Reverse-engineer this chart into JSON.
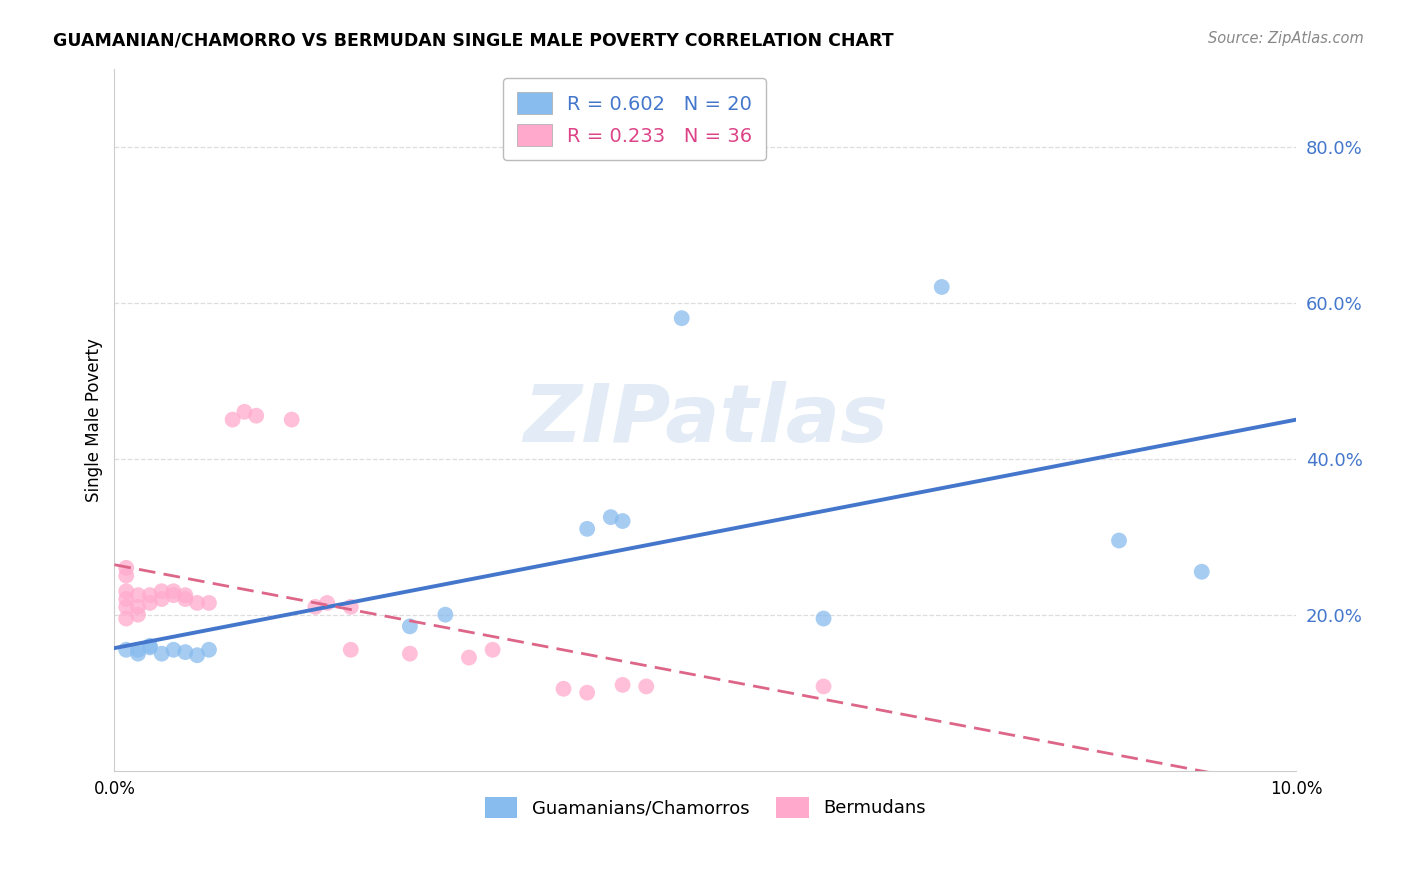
{
  "title": "GUAMANIAN/CHAMORRO VS BERMUDAN SINGLE MALE POVERTY CORRELATION CHART",
  "source": "Source: ZipAtlas.com",
  "ylabel": "Single Male Poverty",
  "watermark": "ZIPatlas",
  "yticks": [
    "20.0%",
    "40.0%",
    "60.0%",
    "80.0%"
  ],
  "ytick_vals": [
    0.2,
    0.4,
    0.6,
    0.8
  ],
  "xlim": [
    0.0,
    0.1
  ],
  "ylim": [
    0.0,
    0.9
  ],
  "blue_color": "#88BBEE",
  "pink_color": "#FFAACC",
  "blue_line_color": "#4477CC",
  "pink_line_color": "#DD6688",
  "blue_scatter": [
    [
      0.001,
      0.155
    ],
    [
      0.002,
      0.15
    ],
    [
      0.002,
      0.155
    ],
    [
      0.003,
      0.158
    ],
    [
      0.003,
      0.16
    ],
    [
      0.004,
      0.15
    ],
    [
      0.005,
      0.155
    ],
    [
      0.006,
      0.152
    ],
    [
      0.007,
      0.148
    ],
    [
      0.008,
      0.155
    ],
    [
      0.025,
      0.185
    ],
    [
      0.028,
      0.2
    ],
    [
      0.04,
      0.31
    ],
    [
      0.042,
      0.325
    ],
    [
      0.043,
      0.32
    ],
    [
      0.048,
      0.58
    ],
    [
      0.06,
      0.195
    ],
    [
      0.07,
      0.62
    ],
    [
      0.085,
      0.295
    ],
    [
      0.092,
      0.255
    ]
  ],
  "pink_scatter": [
    [
      0.001,
      0.195
    ],
    [
      0.001,
      0.21
    ],
    [
      0.001,
      0.22
    ],
    [
      0.001,
      0.23
    ],
    [
      0.001,
      0.25
    ],
    [
      0.001,
      0.26
    ],
    [
      0.002,
      0.2
    ],
    [
      0.002,
      0.21
    ],
    [
      0.002,
      0.225
    ],
    [
      0.003,
      0.215
    ],
    [
      0.003,
      0.225
    ],
    [
      0.004,
      0.22
    ],
    [
      0.004,
      0.23
    ],
    [
      0.005,
      0.225
    ],
    [
      0.005,
      0.23
    ],
    [
      0.006,
      0.22
    ],
    [
      0.006,
      0.225
    ],
    [
      0.007,
      0.215
    ],
    [
      0.008,
      0.215
    ],
    [
      0.01,
      0.45
    ],
    [
      0.011,
      0.46
    ],
    [
      0.012,
      0.455
    ],
    [
      0.015,
      0.45
    ],
    [
      0.017,
      0.21
    ],
    [
      0.018,
      0.215
    ],
    [
      0.02,
      0.21
    ],
    [
      0.02,
      0.155
    ],
    [
      0.025,
      0.15
    ],
    [
      0.03,
      0.145
    ],
    [
      0.032,
      0.155
    ],
    [
      0.038,
      0.105
    ],
    [
      0.04,
      0.1
    ],
    [
      0.043,
      0.11
    ],
    [
      0.045,
      0.108
    ],
    [
      0.06,
      0.108
    ]
  ]
}
